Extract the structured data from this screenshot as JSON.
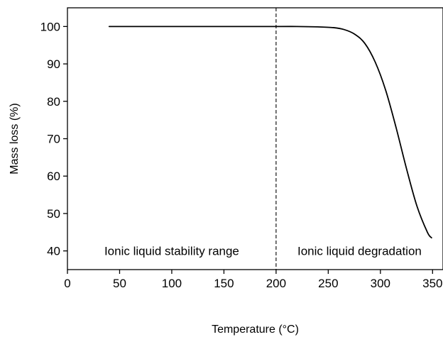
{
  "chart_data": {
    "type": "line",
    "title": "",
    "xlabel": "Temperature (°C)",
    "ylabel": "Mass loss (%)",
    "xlim": [
      0,
      360
    ],
    "ylim": [
      35,
      105
    ],
    "x_ticks": [
      0,
      50,
      100,
      150,
      200,
      250,
      300,
      350
    ],
    "y_ticks": [
      40,
      50,
      60,
      70,
      80,
      90,
      100
    ],
    "grid": false,
    "legend": "none",
    "series": [
      {
        "color": "#000000",
        "x": [
          40,
          100,
          150,
          200,
          220,
          240,
          255,
          265,
          275,
          285,
          295,
          305,
          315,
          325,
          335,
          345,
          349
        ],
        "y": [
          100,
          100,
          100,
          100,
          100,
          99.9,
          99.7,
          99.2,
          98,
          95.5,
          90.5,
          83,
          73,
          62,
          52,
          45,
          43.5
        ]
      }
    ],
    "reference_lines": [
      {
        "axis": "x",
        "value": 200,
        "style": "dashed"
      }
    ],
    "annotations": [
      {
        "text": "Ionic liquid stability range",
        "region": "left",
        "y": 40
      },
      {
        "text": "Ionic liquid degradation",
        "region": "right",
        "y": 40
      }
    ]
  }
}
